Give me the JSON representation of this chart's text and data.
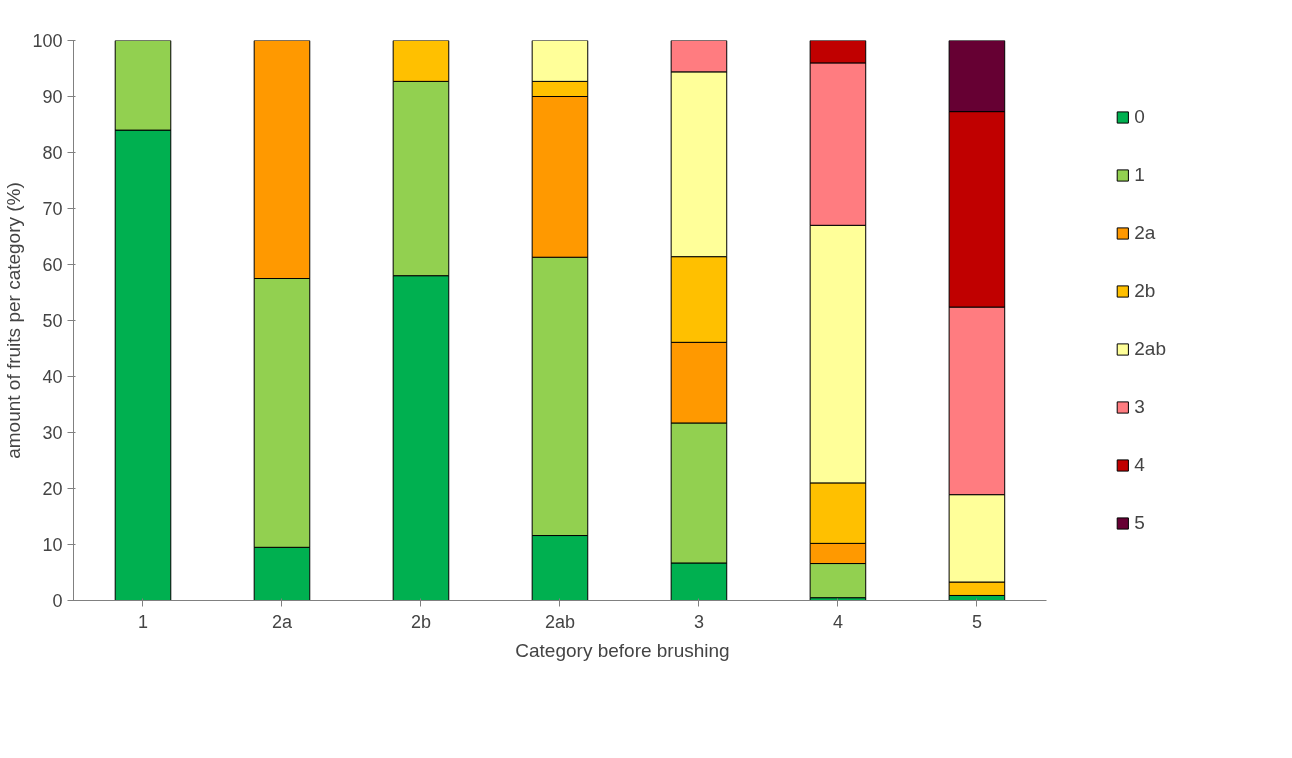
{
  "chart_data": {
    "type": "bar",
    "stacked": true,
    "xlabel": "Category before brushing",
    "ylabel": "amount of fruits per category (%)",
    "categories": [
      "1",
      "2a",
      "2b",
      "2ab",
      "3",
      "4",
      "5"
    ],
    "series": [
      {
        "name": "0",
        "color": "#00b050",
        "values": [
          84,
          9.5,
          58,
          11.6,
          6.7,
          0.5,
          0.9
        ]
      },
      {
        "name": "1",
        "color": "#92d050",
        "values": [
          16,
          48,
          34.7,
          49.7,
          25,
          6.1,
          null
        ]
      },
      {
        "name": "2a",
        "color": "#ff9900",
        "values": [
          null,
          42.5,
          null,
          28.7,
          14.4,
          3.6,
          null
        ]
      },
      {
        "name": "2b",
        "color": "#ffc000",
        "values": [
          null,
          null,
          7.3,
          2.7,
          15.3,
          10.8,
          2.4
        ]
      },
      {
        "name": "2ab",
        "color": "#ffff99",
        "values": [
          null,
          null,
          null,
          7.3,
          33,
          46,
          15.6
        ]
      },
      {
        "name": "3",
        "color": "#ff7c80",
        "values": [
          null,
          null,
          null,
          null,
          5.6,
          29,
          33.5
        ]
      },
      {
        "name": "4",
        "color": "#c00000",
        "values": [
          null,
          null,
          null,
          null,
          null,
          4,
          34.9
        ]
      },
      {
        "name": "5",
        "color": "#660033",
        "values": [
          null,
          null,
          null,
          null,
          null,
          null,
          12.7
        ]
      }
    ],
    "ylim": [
      0,
      100
    ],
    "yticks": [
      0,
      10,
      20,
      30,
      40,
      50,
      60,
      70,
      80,
      90,
      100
    ],
    "grid": false,
    "legend": "right"
  }
}
